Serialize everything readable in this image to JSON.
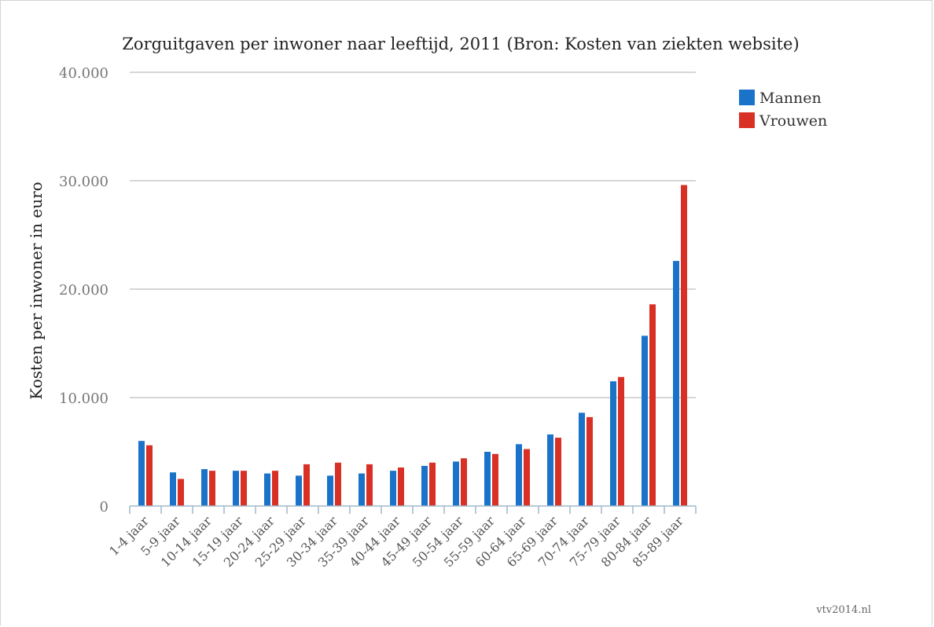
{
  "chart_data": {
    "type": "bar",
    "title": "Zorguitgaven per inwoner naar leeftijd, 2011 (Bron: Kosten van ziekten website)",
    "xlabel": "",
    "ylabel": "Kosten per inwoner in euro",
    "ylim": [
      0,
      40000
    ],
    "yticks": [
      {
        "value": 0,
        "label": "0"
      },
      {
        "value": 10000,
        "label": "10.000"
      },
      {
        "value": 20000,
        "label": "20.000"
      },
      {
        "value": 30000,
        "label": "30.000"
      },
      {
        "value": 40000,
        "label": "40.000"
      }
    ],
    "categories": [
      "1-4 jaar",
      "5-9 jaar",
      "10-14 jaar",
      "15-19 jaar",
      "20-24 jaar",
      "25-29 jaar",
      "30-34 jaar",
      "35-39 jaar",
      "40-44 jaar",
      "45-49 jaar",
      "50-54 jaar",
      "55-59 jaar",
      "60-64 jaar",
      "65-69 jaar",
      "70-74 jaar",
      "75-79 jaar",
      "80-84 jaar",
      "85-89 jaar"
    ],
    "series": [
      {
        "name": "Mannen",
        "color": "#1a73c9",
        "values": [
          6000,
          3100,
          3400,
          3250,
          3000,
          2800,
          2800,
          3000,
          3250,
          3700,
          4100,
          5000,
          5700,
          6600,
          8600,
          11500,
          15700,
          22600
        ]
      },
      {
        "name": "Vrouwen",
        "color": "#d93025",
        "values": [
          5600,
          2500,
          3250,
          3250,
          3250,
          3850,
          4000,
          3850,
          3550,
          4000,
          4400,
          4800,
          5250,
          6300,
          8200,
          11900,
          18600,
          29600
        ]
      }
    ],
    "grid": true,
    "legend_position": "top-right"
  },
  "credit": "vtv2014.nl"
}
